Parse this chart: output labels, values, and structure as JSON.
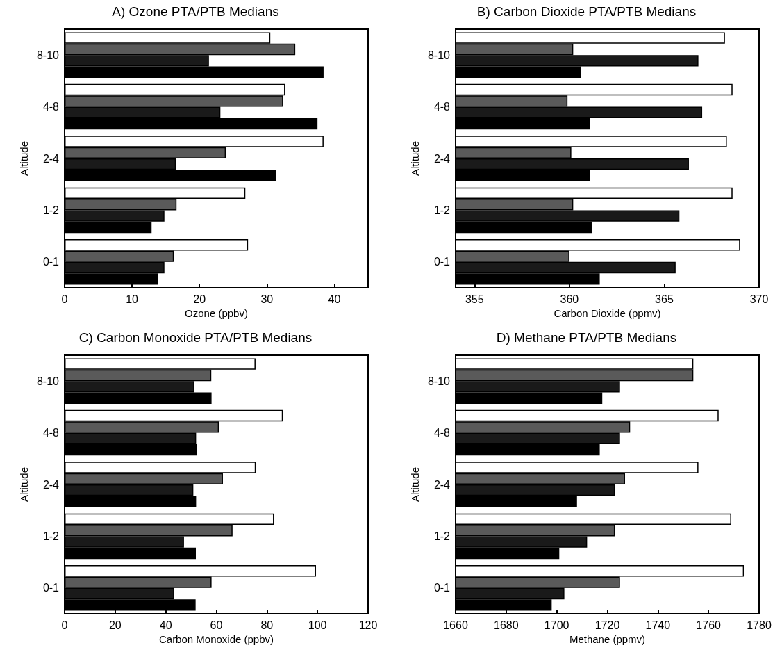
{
  "chart_data": [
    {
      "type": "bar",
      "orientation": "horizontal",
      "title": "A) Ozone PTA/PTB Medians",
      "xlabel": "Ozone (ppbv)",
      "ylabel": "Altitude",
      "categories": [
        "8-10",
        "4-8",
        "2-4",
        "1-2",
        "0-1"
      ],
      "xlim": [
        0,
        45
      ],
      "xticks": [
        0,
        10,
        20,
        30,
        40
      ],
      "series": [
        {
          "color": "#ffffff",
          "values": [
            30.5,
            32.7,
            38.4,
            26.8,
            27.2
          ]
        },
        {
          "color": "#5a5a5a",
          "values": [
            34.2,
            32.4,
            23.9,
            16.6,
            16.2
          ]
        },
        {
          "color": "#1a1a1a",
          "values": [
            21.4,
            23.1,
            16.5,
            14.8,
            14.8
          ]
        },
        {
          "color": "#000000",
          "values": [
            38.4,
            37.5,
            31.4,
            12.9,
            13.9
          ]
        }
      ]
    },
    {
      "type": "bar",
      "orientation": "horizontal",
      "title": "B) Carbon Dioxide PTA/PTB Medians",
      "xlabel": "Carbon Dioxide (ppmv)",
      "ylabel": "Altitude",
      "categories": [
        "8-10",
        "4-8",
        "2-4",
        "1-2",
        "0-1"
      ],
      "xlim": [
        354,
        370
      ],
      "xticks": [
        355,
        360,
        365,
        370
      ],
      "series": [
        {
          "color": "#ffffff",
          "values": [
            368.2,
            368.6,
            368.3,
            368.6,
            369.0
          ]
        },
        {
          "color": "#5a5a5a",
          "values": [
            360.2,
            359.9,
            360.1,
            360.2,
            360.0
          ]
        },
        {
          "color": "#1a1a1a",
          "values": [
            366.8,
            367.0,
            366.3,
            365.8,
            365.6
          ]
        },
        {
          "color": "#000000",
          "values": [
            360.6,
            361.1,
            361.1,
            361.2,
            361.6
          ]
        }
      ]
    },
    {
      "type": "bar",
      "orientation": "horizontal",
      "title": "C) Carbon Monoxide PTA/PTB Medians",
      "xlabel": "Carbon Monoxide (ppbv)",
      "ylabel": "Altitude",
      "categories": [
        "8-10",
        "4-8",
        "2-4",
        "1-2",
        "0-1"
      ],
      "xlim": [
        0,
        120
      ],
      "xticks": [
        0,
        20,
        40,
        60,
        80,
        100,
        120
      ],
      "series": [
        {
          "color": "#ffffff",
          "values": [
            75.5,
            86.3,
            75.6,
            82.8,
            99.4
          ]
        },
        {
          "color": "#5a5a5a",
          "values": [
            58.0,
            61.0,
            62.6,
            66.4,
            58.1
          ]
        },
        {
          "color": "#1a1a1a",
          "values": [
            51.3,
            52.0,
            50.9,
            47.2,
            43.3
          ]
        },
        {
          "color": "#000000",
          "values": [
            58.1,
            52.3,
            52.0,
            51.9,
            51.8
          ]
        }
      ]
    },
    {
      "type": "bar",
      "orientation": "horizontal",
      "title": "D) Methane PTA/PTB Medians",
      "xlabel": "Methane (ppmv)",
      "ylabel": "Altitude",
      "categories": [
        "8-10",
        "4-8",
        "2-4",
        "1-2",
        "0-1"
      ],
      "xlim": [
        1660,
        1780
      ],
      "xticks": [
        1660,
        1680,
        1700,
        1720,
        1740,
        1760,
        1780
      ],
      "series": [
        {
          "color": "#ffffff",
          "values": [
            1754,
            1764,
            1756,
            1769,
            1774
          ]
        },
        {
          "color": "#5a5a5a",
          "values": [
            1754,
            1729,
            1727,
            1723,
            1725
          ]
        },
        {
          "color": "#1a1a1a",
          "values": [
            1725,
            1725,
            1723,
            1712,
            1703
          ]
        },
        {
          "color": "#000000",
          "values": [
            1718,
            1717,
            1708,
            1701,
            1698
          ]
        }
      ]
    }
  ]
}
